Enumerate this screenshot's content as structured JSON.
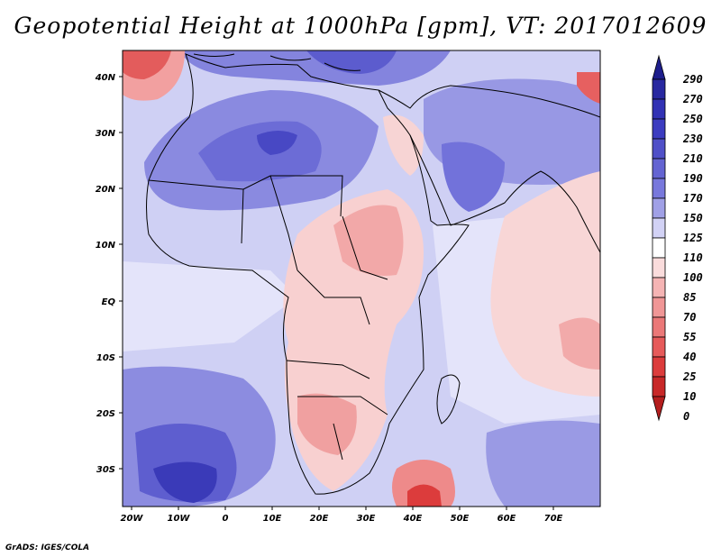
{
  "title": "Geopotential Height at 1000hPa [gpm], VT: 2017012609",
  "credit": "GrADS: IGES/COLA",
  "map": {
    "x_ticks": [
      "20W",
      "10W",
      "0",
      "10E",
      "20E",
      "30E",
      "40E",
      "50E",
      "60E",
      "70E"
    ],
    "y_ticks": [
      "40N",
      "30N",
      "20N",
      "10N",
      "EQ",
      "10S",
      "20S",
      "30S"
    ]
  },
  "colorbar": {
    "levels": [
      "290",
      "270",
      "250",
      "230",
      "210",
      "190",
      "170",
      "150",
      "125",
      "110",
      "100",
      "85",
      "70",
      "55",
      "40",
      "25",
      "10",
      "0"
    ],
    "colors": [
      "#1e1e8c",
      "#2828a0",
      "#3232b4",
      "#3c3cc0",
      "#5050c8",
      "#6464d2",
      "#7878dc",
      "#a0a0e6",
      "#d2d2f5",
      "#ffffff",
      "#fadcdc",
      "#f5b4b4",
      "#f09696",
      "#eb7878",
      "#e65a5a",
      "#dc3c3c",
      "#c82828",
      "#b41e1e"
    ]
  }
}
